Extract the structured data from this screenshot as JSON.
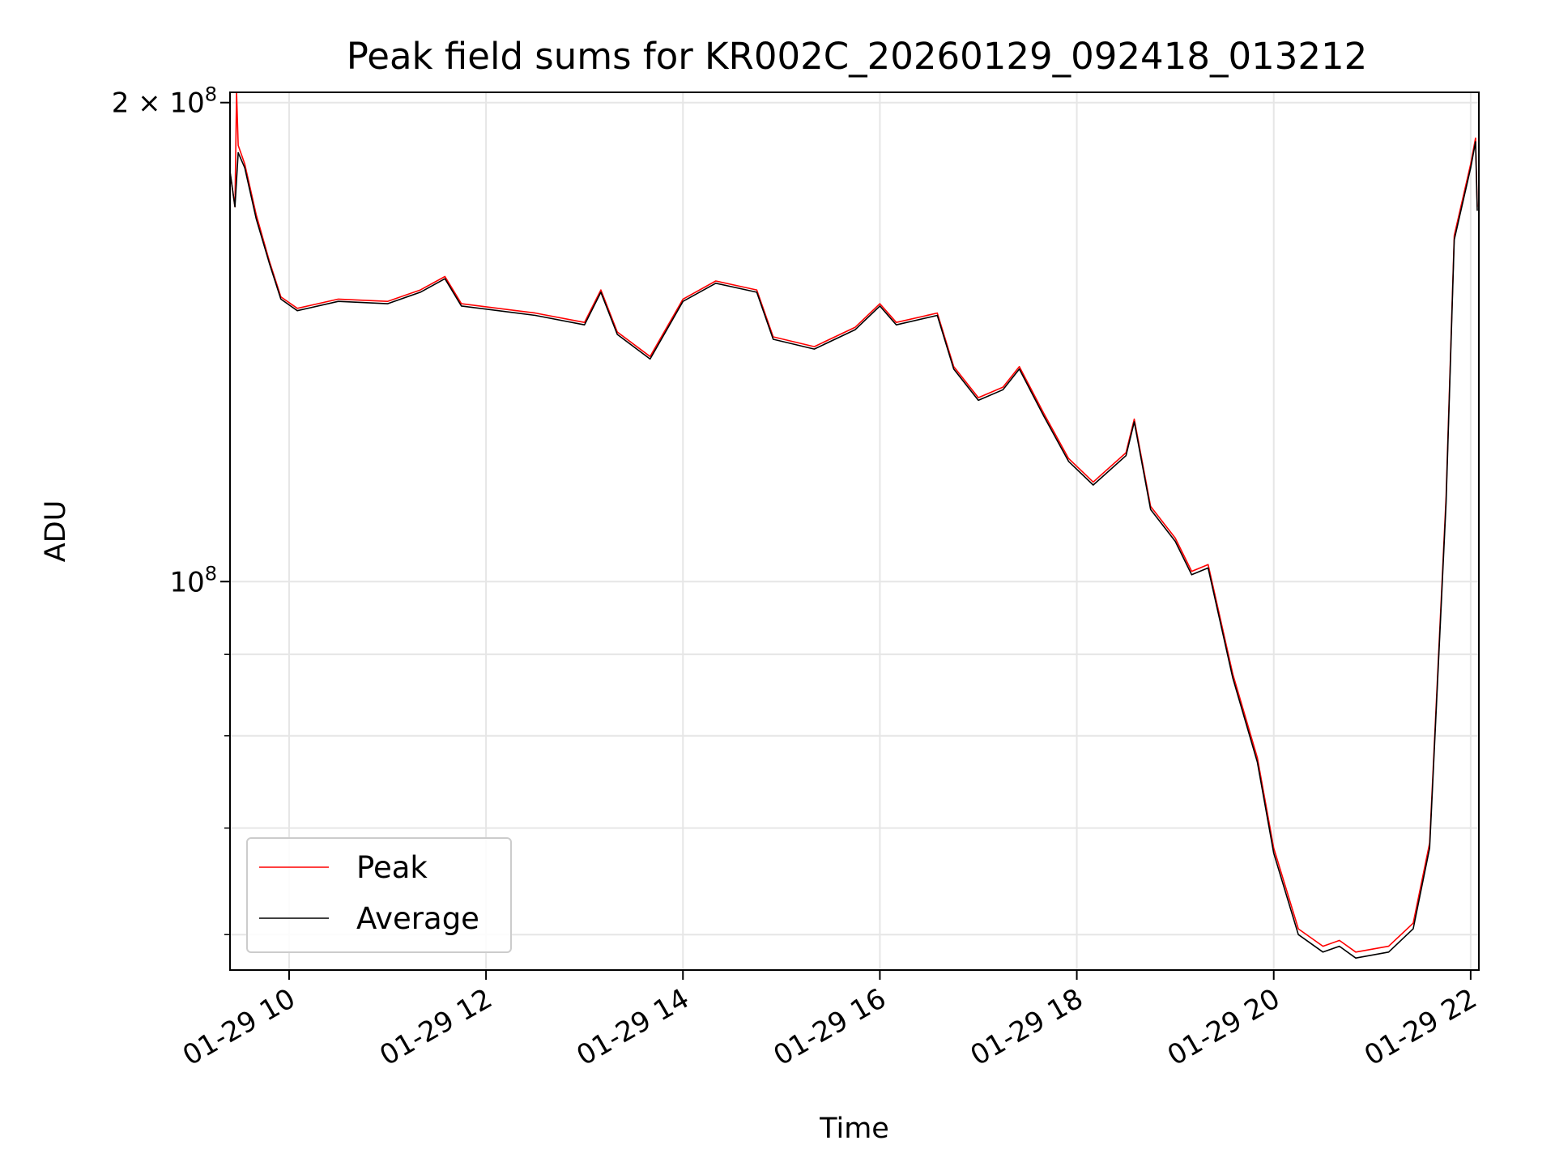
{
  "chart_data": {
    "type": "line",
    "title": "Peak field sums for KR002C_20260129_092418_013212",
    "xlabel": "Time",
    "ylabel": "ADU",
    "x_type": "time",
    "y_scale": "log",
    "grid": true,
    "legend_position": "lower-left",
    "xlim": [
      "2026-01-29 09:24",
      "2026-01-29 22:05"
    ],
    "ylim": [
      57000000,
      203000000
    ],
    "x_ticks": [
      {
        "value": "2026-01-29 10:00",
        "label": "01-29 10"
      },
      {
        "value": "2026-01-29 12:00",
        "label": "01-29 12"
      },
      {
        "value": "2026-01-29 14:00",
        "label": "01-29 14"
      },
      {
        "value": "2026-01-29 16:00",
        "label": "01-29 16"
      },
      {
        "value": "2026-01-29 18:00",
        "label": "01-29 18"
      },
      {
        "value": "2026-01-29 20:00",
        "label": "01-29 20"
      },
      {
        "value": "2026-01-29 22:00",
        "label": "01-29 22"
      }
    ],
    "y_major_ticks": [
      {
        "value": 100000000,
        "base": "10",
        "exp": "8"
      },
      {
        "value": 200000000,
        "base": "2 × 10",
        "exp": "8"
      }
    ],
    "y_minor_ticks": [
      60000000,
      70000000,
      80000000,
      90000000
    ],
    "series": [
      {
        "name": "Peak",
        "color": "#ff0000",
        "points": [
          [
            "2026-01-29 09:24",
            181000000
          ],
          [
            "2026-01-29 09:27",
            172000000
          ],
          [
            "2026-01-29 09:28",
            203000000
          ],
          [
            "2026-01-29 09:29",
            188000000
          ],
          [
            "2026-01-29 09:33",
            183000000
          ],
          [
            "2026-01-29 09:40",
            170000000
          ],
          [
            "2026-01-29 09:48",
            159000000
          ],
          [
            "2026-01-29 09:55",
            151000000
          ],
          [
            "2026-01-29 10:05",
            148500000
          ],
          [
            "2026-01-29 10:30",
            150500000
          ],
          [
            "2026-01-29 11:00",
            150000000
          ],
          [
            "2026-01-29 11:20",
            152500000
          ],
          [
            "2026-01-29 11:35",
            155500000
          ],
          [
            "2026-01-29 11:45",
            149500000
          ],
          [
            "2026-01-29 12:30",
            147500000
          ],
          [
            "2026-01-29 13:00",
            145500000
          ],
          [
            "2026-01-29 13:10",
            152500000
          ],
          [
            "2026-01-29 13:20",
            143500000
          ],
          [
            "2026-01-29 13:40",
            138500000
          ],
          [
            "2026-01-29 14:00",
            150500000
          ],
          [
            "2026-01-29 14:20",
            154500000
          ],
          [
            "2026-01-29 14:45",
            152500000
          ],
          [
            "2026-01-29 14:55",
            142500000
          ],
          [
            "2026-01-29 15:20",
            140500000
          ],
          [
            "2026-01-29 15:45",
            144500000
          ],
          [
            "2026-01-29 16:00",
            149500000
          ],
          [
            "2026-01-29 16:10",
            145500000
          ],
          [
            "2026-01-29 16:35",
            147500000
          ],
          [
            "2026-01-29 16:45",
            136500000
          ],
          [
            "2026-01-29 17:00",
            130500000
          ],
          [
            "2026-01-29 17:15",
            132500000
          ],
          [
            "2026-01-29 17:25",
            136500000
          ],
          [
            "2026-01-29 17:40",
            127500000
          ],
          [
            "2026-01-29 17:55",
            119500000
          ],
          [
            "2026-01-29 18:10",
            115500000
          ],
          [
            "2026-01-29 18:30",
            120500000
          ],
          [
            "2026-01-29 18:35",
            126500000
          ],
          [
            "2026-01-29 18:45",
            111500000
          ],
          [
            "2026-01-29 19:00",
            106500000
          ],
          [
            "2026-01-29 19:10",
            101500000
          ],
          [
            "2026-01-29 19:20",
            102500000
          ],
          [
            "2026-01-29 19:35",
            87500000
          ],
          [
            "2026-01-29 19:50",
            77500000
          ],
          [
            "2026-01-29 20:00",
            68000000
          ],
          [
            "2026-01-29 20:15",
            60500000
          ],
          [
            "2026-01-29 20:30",
            59000000
          ],
          [
            "2026-01-29 20:40",
            59500000
          ],
          [
            "2026-01-29 20:50",
            58500000
          ],
          [
            "2026-01-29 21:10",
            59000000
          ],
          [
            "2026-01-29 21:25",
            61000000
          ],
          [
            "2026-01-29 21:35",
            68500000
          ],
          [
            "2026-01-29 21:45",
            113000000
          ],
          [
            "2026-01-29 21:50",
            165000000
          ],
          [
            "2026-01-29 22:00",
            183000000
          ],
          [
            "2026-01-29 22:03",
            190000000
          ],
          [
            "2026-01-29 22:04",
            172000000
          ]
        ]
      },
      {
        "name": "Average",
        "color": "#000000",
        "points": [
          [
            "2026-01-29 09:24",
            181000000
          ],
          [
            "2026-01-29 09:27",
            172000000
          ],
          [
            "2026-01-29 09:29",
            186000000
          ],
          [
            "2026-01-29 09:33",
            182000000
          ],
          [
            "2026-01-29 09:40",
            169000000
          ],
          [
            "2026-01-29 09:48",
            158500000
          ],
          [
            "2026-01-29 09:55",
            150500000
          ],
          [
            "2026-01-29 10:05",
            148000000
          ],
          [
            "2026-01-29 10:30",
            150000000
          ],
          [
            "2026-01-29 11:00",
            149500000
          ],
          [
            "2026-01-29 11:20",
            152000000
          ],
          [
            "2026-01-29 11:35",
            155000000
          ],
          [
            "2026-01-29 11:45",
            149000000
          ],
          [
            "2026-01-29 12:30",
            147000000
          ],
          [
            "2026-01-29 13:00",
            145000000
          ],
          [
            "2026-01-29 13:10",
            152000000
          ],
          [
            "2026-01-29 13:20",
            143000000
          ],
          [
            "2026-01-29 13:40",
            138000000
          ],
          [
            "2026-01-29 14:00",
            150000000
          ],
          [
            "2026-01-29 14:20",
            154000000
          ],
          [
            "2026-01-29 14:45",
            152000000
          ],
          [
            "2026-01-29 14:55",
            142000000
          ],
          [
            "2026-01-29 15:20",
            140000000
          ],
          [
            "2026-01-29 15:45",
            144000000
          ],
          [
            "2026-01-29 16:00",
            149000000
          ],
          [
            "2026-01-29 16:10",
            145000000
          ],
          [
            "2026-01-29 16:35",
            147000000
          ],
          [
            "2026-01-29 16:45",
            136000000
          ],
          [
            "2026-01-29 17:00",
            130000000
          ],
          [
            "2026-01-29 17:15",
            132000000
          ],
          [
            "2026-01-29 17:25",
            136000000
          ],
          [
            "2026-01-29 17:40",
            127000000
          ],
          [
            "2026-01-29 17:55",
            119000000
          ],
          [
            "2026-01-29 18:10",
            115000000
          ],
          [
            "2026-01-29 18:30",
            120000000
          ],
          [
            "2026-01-29 18:35",
            126000000
          ],
          [
            "2026-01-29 18:45",
            111000000
          ],
          [
            "2026-01-29 19:00",
            106000000
          ],
          [
            "2026-01-29 19:10",
            101000000
          ],
          [
            "2026-01-29 19:20",
            102000000
          ],
          [
            "2026-01-29 19:35",
            87000000
          ],
          [
            "2026-01-29 19:50",
            77000000
          ],
          [
            "2026-01-29 20:00",
            67500000
          ],
          [
            "2026-01-29 20:15",
            60000000
          ],
          [
            "2026-01-29 20:30",
            58500000
          ],
          [
            "2026-01-29 20:40",
            59000000
          ],
          [
            "2026-01-29 20:50",
            58000000
          ],
          [
            "2026-01-29 21:10",
            58500000
          ],
          [
            "2026-01-29 21:25",
            60500000
          ],
          [
            "2026-01-29 21:35",
            68000000
          ],
          [
            "2026-01-29 21:45",
            112000000
          ],
          [
            "2026-01-29 21:50",
            164000000
          ],
          [
            "2026-01-29 22:00",
            182000000
          ],
          [
            "2026-01-29 22:03",
            189000000
          ],
          [
            "2026-01-29 22:04",
            171000000
          ]
        ]
      }
    ]
  }
}
